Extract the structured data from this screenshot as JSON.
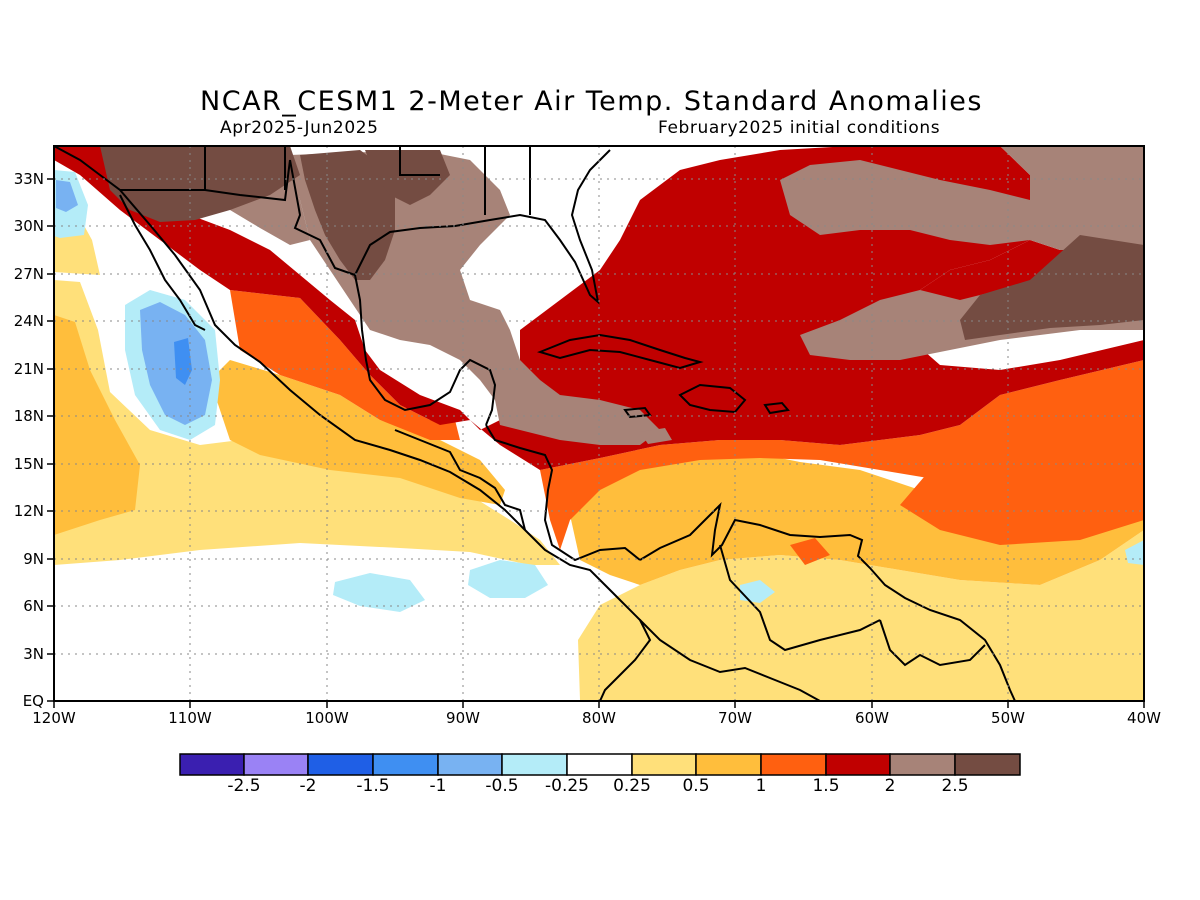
{
  "title": "NCAR_CESM1 2-Meter Air Temp. Standard Anomalies",
  "period": "Apr2025-Jun2025",
  "init": "February2025 initial conditions",
  "lat_ticks": [
    "33N",
    "30N",
    "27N",
    "24N",
    "21N",
    "18N",
    "15N",
    "12N",
    "9N",
    "6N",
    "3N",
    "EQ"
  ],
  "lon_ticks": [
    "120W",
    "110W",
    "100W",
    "90W",
    "80W",
    "70W",
    "60W",
    "50W",
    "40W"
  ],
  "colors": {
    "lt_m25": "#3a1fb0",
    "m25_m2": "#9a82f5",
    "m2_m15": "#1f5fe6",
    "m15_m1": "#3f8ff2",
    "m1_m05": "#78b2f2",
    "m05_m025": "#b4ecf8",
    "m025_025": "#ffffff",
    "p025_05": "#ffe07a",
    "p05_1": "#ffbe3c",
    "p1_15": "#ff6010",
    "p15_2": "#c00000",
    "p2_25": "#a78378",
    "gt_25": "#744c42"
  },
  "colorbar_labels": [
    "-2.5",
    "-2",
    "-1.5",
    "-1",
    "-0.5",
    "-0.25",
    "0.25",
    "0.5",
    "1",
    "1.5",
    "2",
    "2.5"
  ]
}
